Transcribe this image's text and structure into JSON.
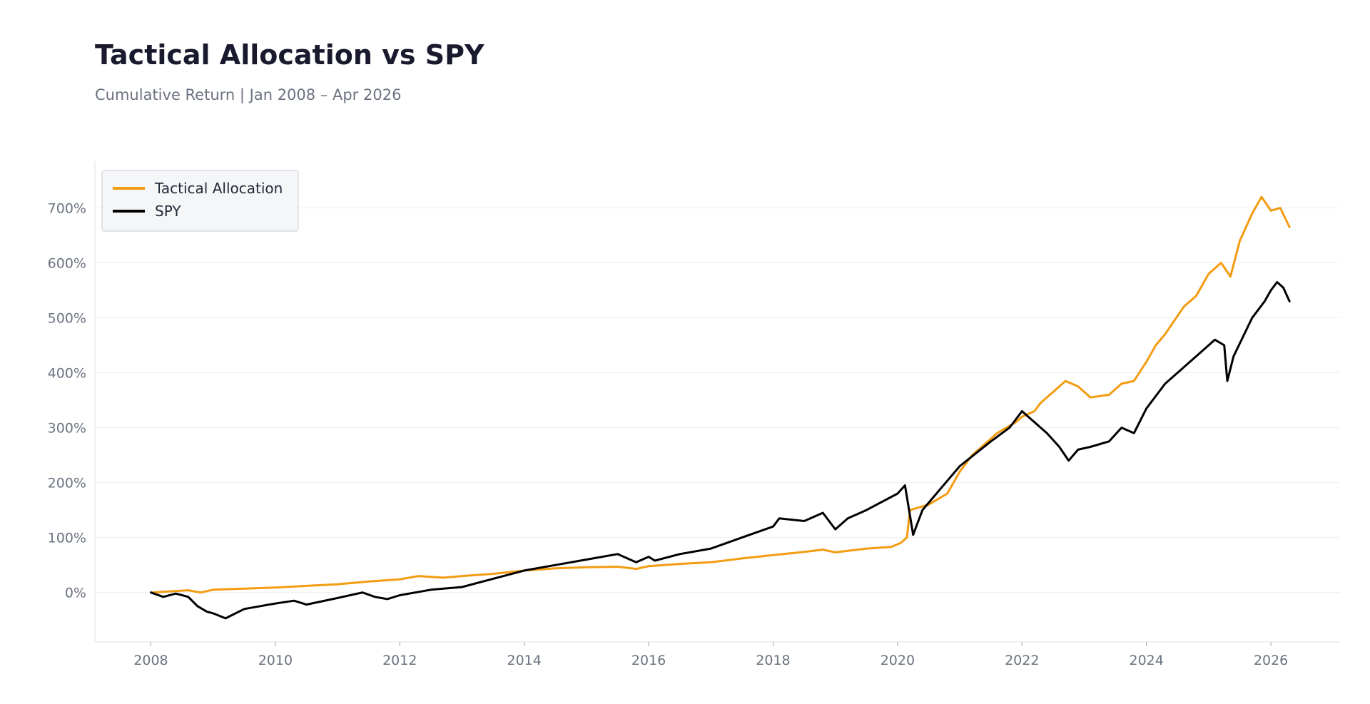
{
  "chart_data": {
    "type": "line",
    "title": "Tactical Allocation vs SPY",
    "subtitle": "Cumulative Return | Jan 2008 – Apr 2026",
    "xlabel": "",
    "ylabel": "",
    "xlim": [
      2007.1,
      2027.1
    ],
    "ylim": [
      -90,
      785
    ],
    "x_ticks": [
      2008,
      2010,
      2012,
      2014,
      2016,
      2018,
      2020,
      2022,
      2024,
      2026
    ],
    "x_tick_labels": [
      "2008",
      "2010",
      "2012",
      "2014",
      "2016",
      "2018",
      "2020",
      "2022",
      "2024",
      "2026"
    ],
    "y_ticks": [
      0,
      100,
      200,
      300,
      400,
      500,
      600,
      700
    ],
    "y_tick_labels": [
      "0%",
      "100%",
      "200%",
      "300%",
      "400%",
      "500%",
      "600%",
      "700%"
    ],
    "grid": "horizontal",
    "legend": {
      "position": "top-left",
      "entries": [
        "Tactical Allocation",
        "SPY"
      ]
    },
    "series": [
      {
        "name": "Tactical Allocation",
        "color": "#f39c12",
        "points": [
          [
            2008.0,
            0
          ],
          [
            2008.3,
            2
          ],
          [
            2008.6,
            4
          ],
          [
            2008.8,
            0
          ],
          [
            2009.0,
            5
          ],
          [
            2009.5,
            7
          ],
          [
            2010.0,
            9
          ],
          [
            2010.5,
            12
          ],
          [
            2011.0,
            15
          ],
          [
            2011.5,
            20
          ],
          [
            2012.0,
            24
          ],
          [
            2012.3,
            30
          ],
          [
            2012.7,
            27
          ],
          [
            2013.0,
            30
          ],
          [
            2013.5,
            34
          ],
          [
            2014.0,
            40
          ],
          [
            2014.5,
            44
          ],
          [
            2015.0,
            46
          ],
          [
            2015.5,
            47
          ],
          [
            2015.8,
            43
          ],
          [
            2016.0,
            48
          ],
          [
            2016.5,
            52
          ],
          [
            2017.0,
            55
          ],
          [
            2017.5,
            62
          ],
          [
            2018.0,
            68
          ],
          [
            2018.5,
            74
          ],
          [
            2018.8,
            78
          ],
          [
            2019.0,
            73
          ],
          [
            2019.5,
            80
          ],
          [
            2019.9,
            83
          ],
          [
            2020.05,
            90
          ],
          [
            2020.15,
            100
          ],
          [
            2020.2,
            150
          ],
          [
            2020.5,
            160
          ],
          [
            2020.8,
            180
          ],
          [
            2021.0,
            220
          ],
          [
            2021.2,
            250
          ],
          [
            2021.4,
            270
          ],
          [
            2021.6,
            290
          ],
          [
            2021.9,
            310
          ],
          [
            2022.0,
            320
          ],
          [
            2022.2,
            330
          ],
          [
            2022.3,
            345
          ],
          [
            2022.5,
            365
          ],
          [
            2022.7,
            385
          ],
          [
            2022.9,
            375
          ],
          [
            2023.1,
            355
          ],
          [
            2023.4,
            360
          ],
          [
            2023.6,
            380
          ],
          [
            2023.8,
            385
          ],
          [
            2024.0,
            420
          ],
          [
            2024.15,
            450
          ],
          [
            2024.3,
            470
          ],
          [
            2024.6,
            520
          ],
          [
            2024.8,
            540
          ],
          [
            2025.0,
            580
          ],
          [
            2025.2,
            600
          ],
          [
            2025.35,
            575
          ],
          [
            2025.5,
            640
          ],
          [
            2025.7,
            690
          ],
          [
            2025.85,
            720
          ],
          [
            2026.0,
            695
          ],
          [
            2026.15,
            700
          ],
          [
            2026.3,
            665
          ]
        ]
      },
      {
        "name": "SPY",
        "color": "#000000",
        "points": [
          [
            2008.0,
            0
          ],
          [
            2008.2,
            -8
          ],
          [
            2008.4,
            -2
          ],
          [
            2008.6,
            -8
          ],
          [
            2008.75,
            -25
          ],
          [
            2008.9,
            -35
          ],
          [
            2009.0,
            -38
          ],
          [
            2009.2,
            -47
          ],
          [
            2009.5,
            -30
          ],
          [
            2010.0,
            -20
          ],
          [
            2010.3,
            -15
          ],
          [
            2010.5,
            -22
          ],
          [
            2011.0,
            -10
          ],
          [
            2011.4,
            0
          ],
          [
            2011.6,
            -8
          ],
          [
            2011.8,
            -12
          ],
          [
            2012.0,
            -5
          ],
          [
            2012.5,
            5
          ],
          [
            2013.0,
            10
          ],
          [
            2013.5,
            25
          ],
          [
            2014.0,
            40
          ],
          [
            2014.5,
            50
          ],
          [
            2015.0,
            60
          ],
          [
            2015.5,
            70
          ],
          [
            2015.8,
            55
          ],
          [
            2016.0,
            65
          ],
          [
            2016.1,
            58
          ],
          [
            2016.5,
            70
          ],
          [
            2017.0,
            80
          ],
          [
            2017.5,
            100
          ],
          [
            2018.0,
            120
          ],
          [
            2018.1,
            135
          ],
          [
            2018.5,
            130
          ],
          [
            2018.8,
            145
          ],
          [
            2019.0,
            115
          ],
          [
            2019.2,
            135
          ],
          [
            2019.5,
            150
          ],
          [
            2020.0,
            180
          ],
          [
            2020.12,
            195
          ],
          [
            2020.2,
            140
          ],
          [
            2020.25,
            105
          ],
          [
            2020.4,
            150
          ],
          [
            2020.7,
            190
          ],
          [
            2021.0,
            230
          ],
          [
            2021.5,
            275
          ],
          [
            2021.8,
            300
          ],
          [
            2022.0,
            330
          ],
          [
            2022.2,
            310
          ],
          [
            2022.4,
            290
          ],
          [
            2022.6,
            265
          ],
          [
            2022.75,
            240
          ],
          [
            2022.9,
            260
          ],
          [
            2023.1,
            265
          ],
          [
            2023.4,
            275
          ],
          [
            2023.6,
            300
          ],
          [
            2023.8,
            290
          ],
          [
            2024.0,
            335
          ],
          [
            2024.3,
            380
          ],
          [
            2024.6,
            410
          ],
          [
            2024.9,
            440
          ],
          [
            2025.1,
            460
          ],
          [
            2025.25,
            450
          ],
          [
            2025.3,
            385
          ],
          [
            2025.4,
            430
          ],
          [
            2025.7,
            500
          ],
          [
            2025.9,
            530
          ],
          [
            2026.0,
            550
          ],
          [
            2026.1,
            565
          ],
          [
            2026.2,
            555
          ],
          [
            2026.3,
            530
          ]
        ]
      }
    ]
  }
}
